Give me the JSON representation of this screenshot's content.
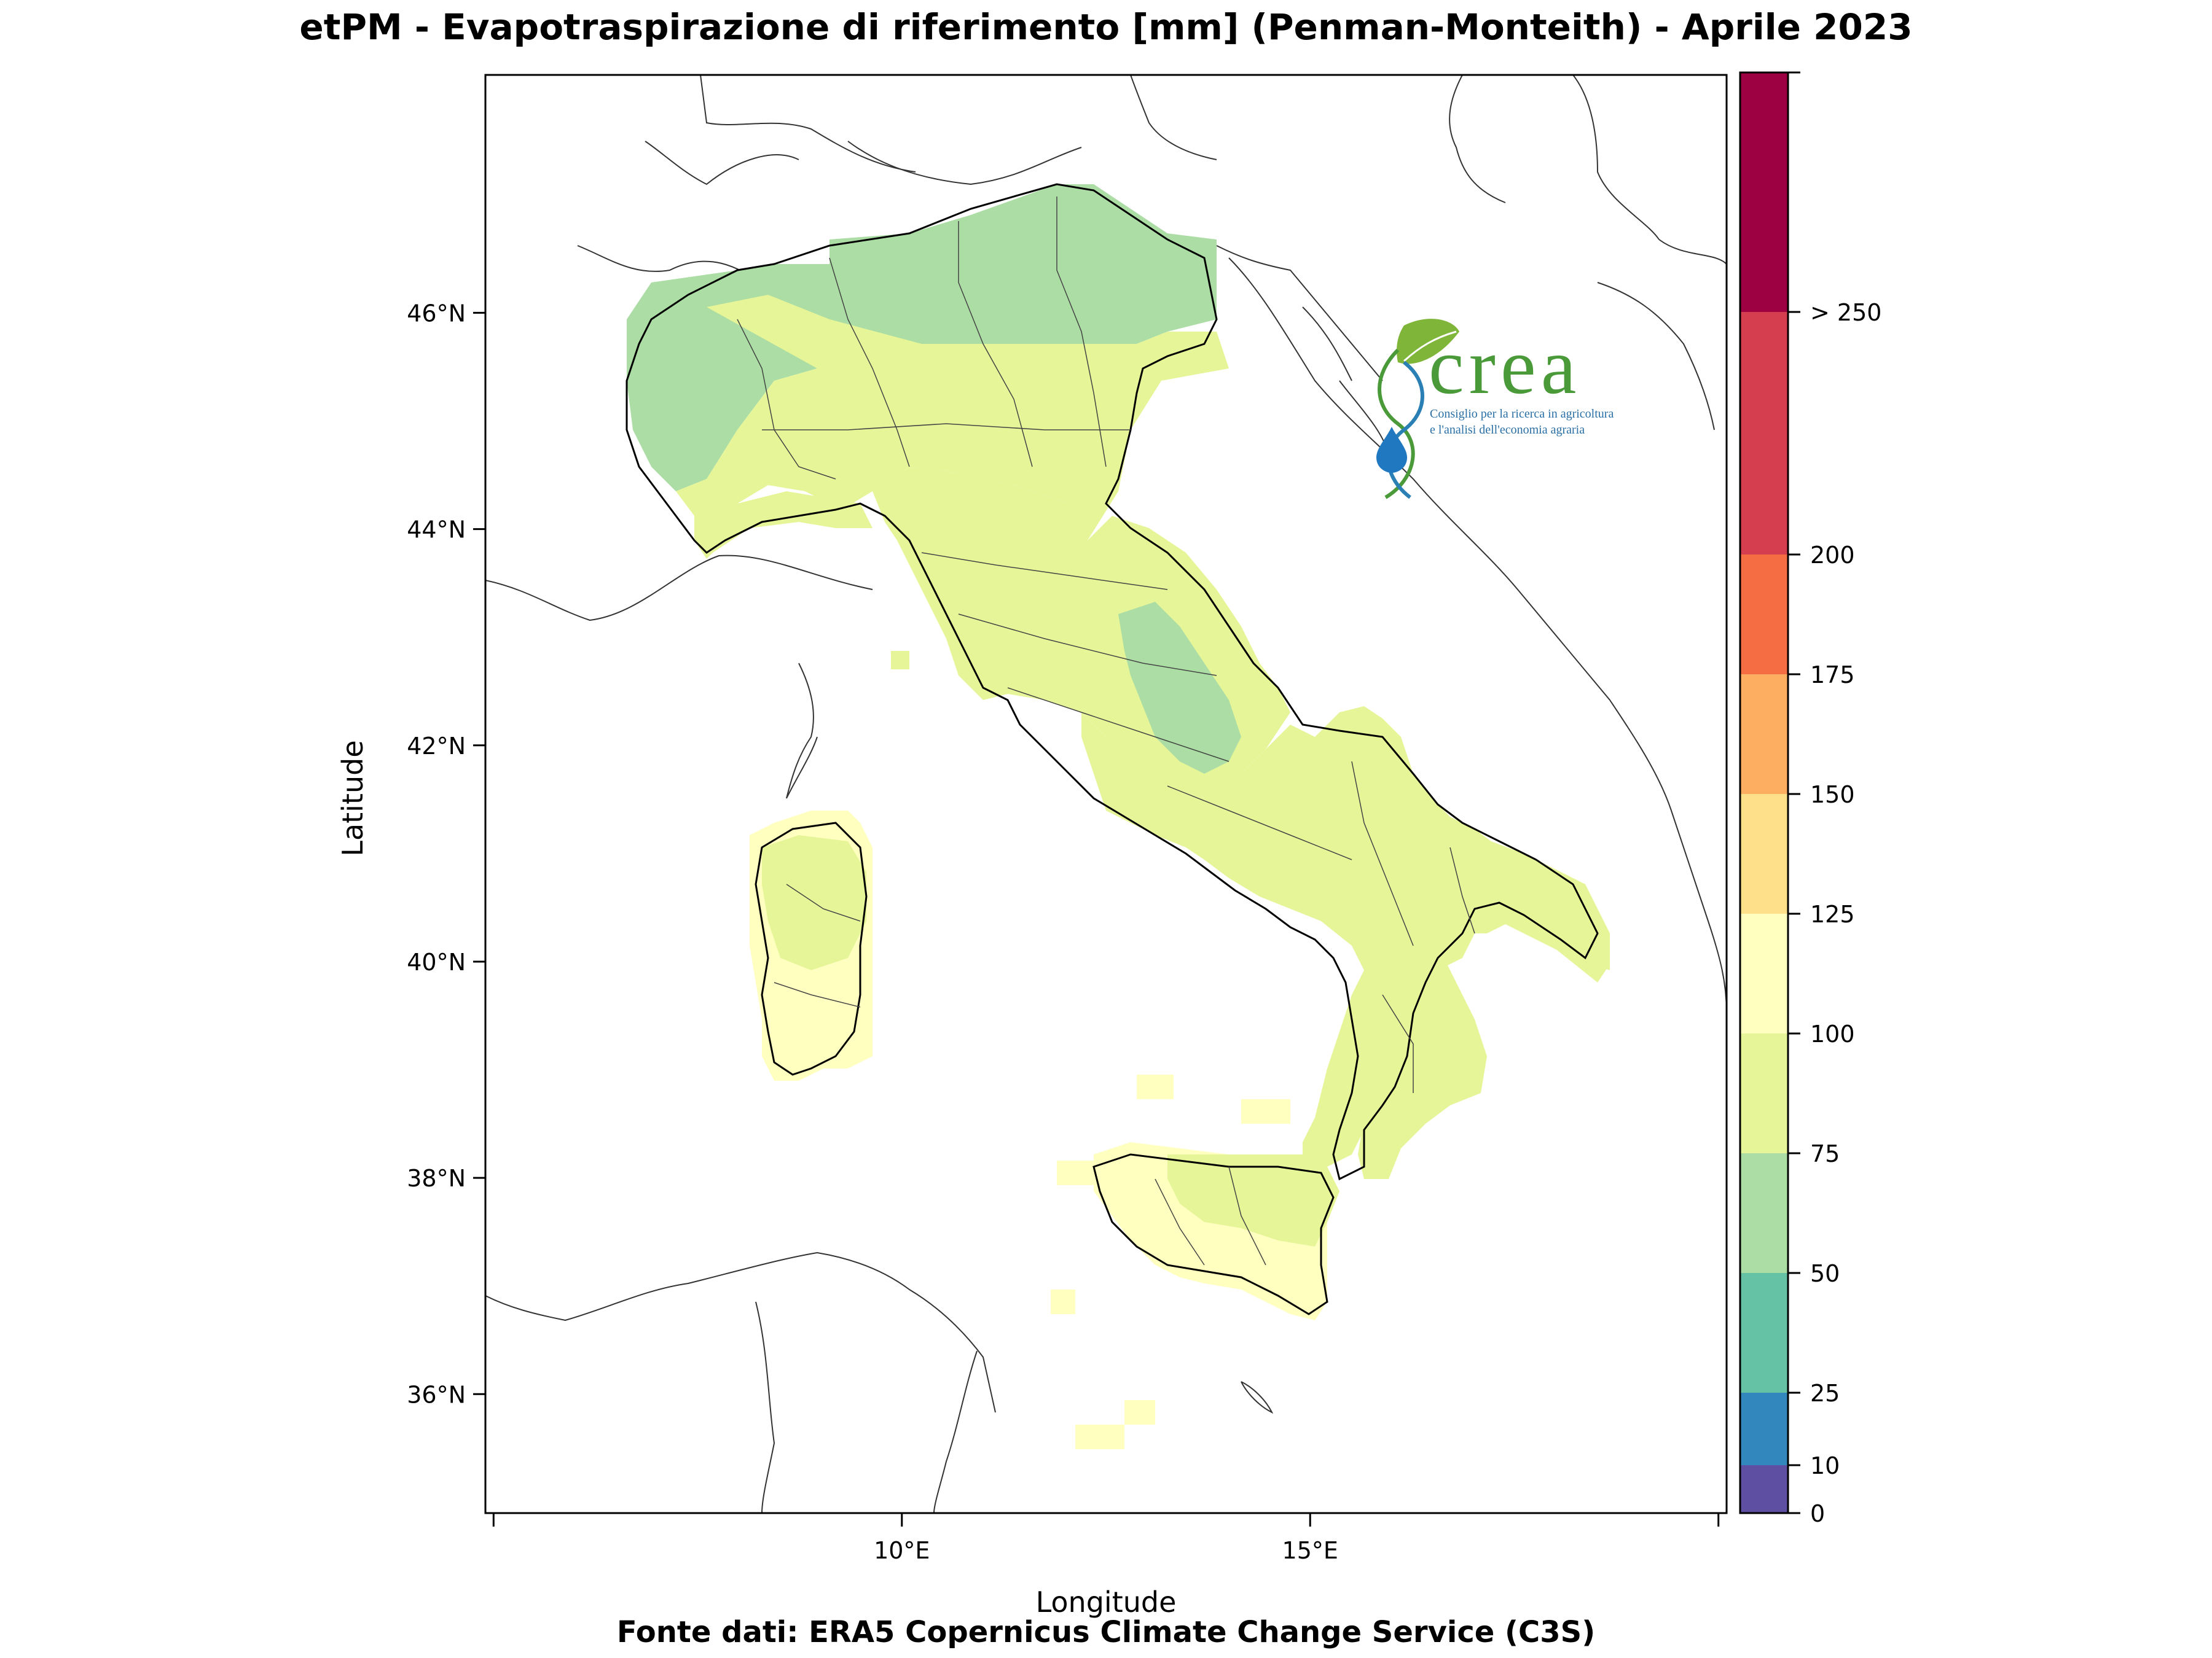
{
  "title": "etPM - Evapotraspirazione di riferimento [mm] (Penman-Monteith) - Aprile 2023",
  "source": "Fonte dati: ERA5 Copernicus Climate Change Service (C3S)",
  "map": {
    "xlabel": "Longitude",
    "ylabel": "Latitude",
    "lon_ticks": [
      {
        "value": 10,
        "label": "10°E"
      },
      {
        "value": 15,
        "label": "15°E"
      }
    ],
    "lat_ticks": [
      {
        "value": 36,
        "label": "36°N"
      },
      {
        "value": 38,
        "label": "38°N"
      },
      {
        "value": 40,
        "label": "40°N"
      },
      {
        "value": 42,
        "label": "42°N"
      },
      {
        "value": 44,
        "label": "44°N"
      },
      {
        "value": 46,
        "label": "46°N"
      }
    ],
    "extent": {
      "lon": [
        4.9,
        20.1
      ],
      "lat": [
        34.9,
        48.2
      ]
    }
  },
  "colorbar": {
    "bins": [
      {
        "from": "0",
        "to": "10",
        "color": "#5e4fa2"
      },
      {
        "from": "10",
        "to": "25",
        "color": "#3288bd"
      },
      {
        "from": "25",
        "to": "50",
        "color": "#66c2a5"
      },
      {
        "from": "50",
        "to": "75",
        "color": "#abdda4"
      },
      {
        "from": "75",
        "to": "100",
        "color": "#e6f598"
      },
      {
        "from": "100",
        "to": "125",
        "color": "#ffffbf"
      },
      {
        "from": "125",
        "to": "150",
        "color": "#fee08b"
      },
      {
        "from": "150",
        "to": "175",
        "color": "#fdae61"
      },
      {
        "from": "175",
        "to": "200",
        "color": "#f46d43"
      },
      {
        "from": "200",
        "to": "250",
        "color": "#d53e4f"
      },
      {
        "from": "> 250",
        "to": "",
        "color": "#9e0142"
      }
    ],
    "tick_labels": [
      "0",
      "10",
      "25",
      "50",
      "75",
      "100",
      "125",
      "150",
      "175",
      "200",
      "> 250"
    ]
  },
  "logo": {
    "name": "crea",
    "subtitle_line1": "Consiglio per la ricerca in agricoltura",
    "subtitle_line2": "e l'analisi dell'economia agraria"
  },
  "colors": {
    "dominant": "#e6f598",
    "alps": "#abdda4",
    "islands": "#ffffbf"
  }
}
